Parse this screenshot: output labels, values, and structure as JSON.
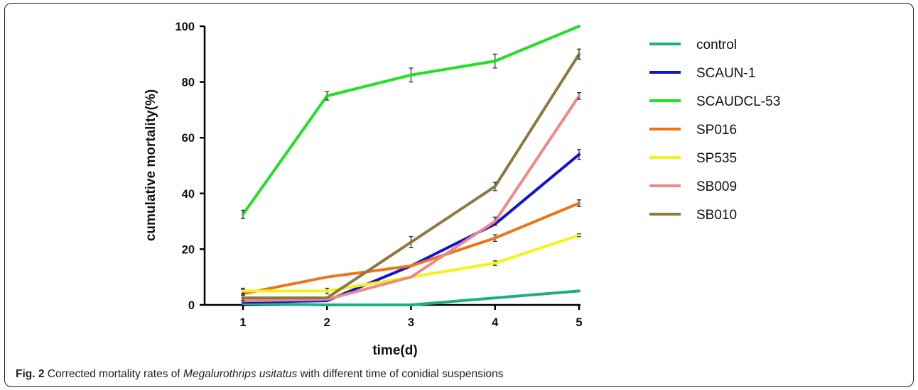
{
  "chart_data": {
    "type": "line",
    "x": [
      1,
      2,
      3,
      4,
      5
    ],
    "xlabel": "time(d)",
    "ylabel": "cumulative mortality(%)",
    "ylim": [
      0,
      100
    ],
    "yticks": [
      0,
      20,
      40,
      60,
      80,
      100
    ],
    "legend_position": "right",
    "series": [
      {
        "name": "control",
        "color": "#1aaf86",
        "values": [
          0.5,
          0,
          0,
          2.5,
          5
        ],
        "errors": [
          0,
          0,
          0,
          0,
          0
        ]
      },
      {
        "name": "SCAUN-1",
        "color": "#1212d6",
        "values": [
          1,
          1.5,
          14,
          29,
          54
        ],
        "errors": [
          0,
          0,
          0,
          0,
          1.8
        ]
      },
      {
        "name": "SCAUDCL-53",
        "color": "#22e022",
        "values": [
          32.5,
          75,
          82.5,
          87.5,
          100
        ],
        "errors": [
          1.5,
          1.5,
          2.5,
          2.5,
          0
        ]
      },
      {
        "name": "SP016",
        "color": "#ee7515",
        "values": [
          4,
          10,
          14,
          24,
          36.5
        ],
        "errors": [
          1.5,
          0,
          0,
          1.2,
          1.2
        ]
      },
      {
        "name": "SP535",
        "color": "#f3f318",
        "values": [
          5,
          5,
          10,
          15,
          25
        ],
        "errors": [
          1,
          1,
          0,
          0.8,
          0.5
        ]
      },
      {
        "name": "SB009",
        "color": "#f08888",
        "values": [
          1.5,
          2,
          10,
          30,
          75
        ],
        "errors": [
          0,
          0,
          0,
          1.5,
          1.2
        ]
      },
      {
        "name": "SB010",
        "color": "#8b7a3d",
        "values": [
          2.5,
          2.5,
          22.5,
          42.5,
          90
        ],
        "errors": [
          1,
          0,
          2,
          1.5,
          1.8
        ]
      }
    ]
  },
  "caption": {
    "fig_label": "Fig. 2",
    "text_before": " Corrected mortality rates of ",
    "species": "Megalurothrips usitatus",
    "text_after": " with different time of conidial suspensions"
  }
}
